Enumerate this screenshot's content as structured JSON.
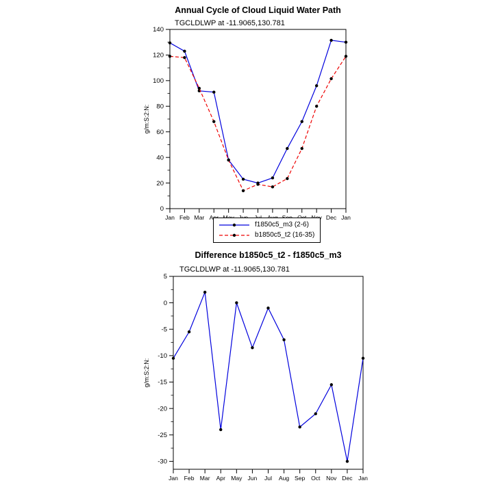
{
  "chart_data": [
    {
      "type": "line",
      "title": "Annual Cycle of Cloud Liquid Water Path",
      "subtitle": "TGCLDLWP at -11.9065,130.781",
      "ylabel": "g/m:S:2:N:",
      "categories": [
        "Jan",
        "Feb",
        "Mar",
        "Apr",
        "May",
        "Jun",
        "Jul",
        "Aug",
        "Sep",
        "Oct",
        "Nov",
        "Dec",
        "Jan"
      ],
      "ylim": [
        0,
        140
      ],
      "ytick_step": 20,
      "grid": false,
      "legend_position": "below-center",
      "series": [
        {
          "name": "f1850c5_m3 (2-6)",
          "color": "#0000dd",
          "style": "solid",
          "marker": "filled-circle",
          "marker_color": "#000000",
          "values": [
            129.5,
            123,
            92,
            91,
            38,
            23,
            20,
            24,
            47,
            68,
            96,
            131.5,
            130
          ]
        },
        {
          "name": "b1850c5_t2 (16-35)",
          "color": "#ee0000",
          "style": "dashed",
          "marker": "filled-circle",
          "marker_color": "#000000",
          "values": [
            119,
            118,
            94,
            68,
            38,
            14,
            19,
            17,
            23.5,
            47,
            80,
            101.5,
            119
          ]
        }
      ]
    },
    {
      "type": "line",
      "title": "Difference b1850c5_t2 - f1850c5_m3",
      "subtitle": "TGCLDLWP at -11.9065,130.781",
      "ylabel": "g/m:S:2:N:",
      "categories": [
        "Jan",
        "Feb",
        "Mar",
        "Apr",
        "May",
        "Jun",
        "Jul",
        "Aug",
        "Sep",
        "Oct",
        "Nov",
        "Dec",
        "Jan"
      ],
      "ylim": [
        -30,
        5
      ],
      "ytick_step": 5,
      "grid": false,
      "legend_position": "none",
      "series": [
        {
          "name": "b1850c5_t2 - f1850c5_m3",
          "color": "#0000dd",
          "style": "solid",
          "marker": "filled-circle",
          "marker_color": "#000000",
          "values": [
            -10.5,
            -5.5,
            2,
            -24,
            0,
            -8.5,
            -1,
            -7,
            -23.5,
            -21,
            -15.5,
            -30,
            -10.5
          ]
        }
      ]
    }
  ]
}
